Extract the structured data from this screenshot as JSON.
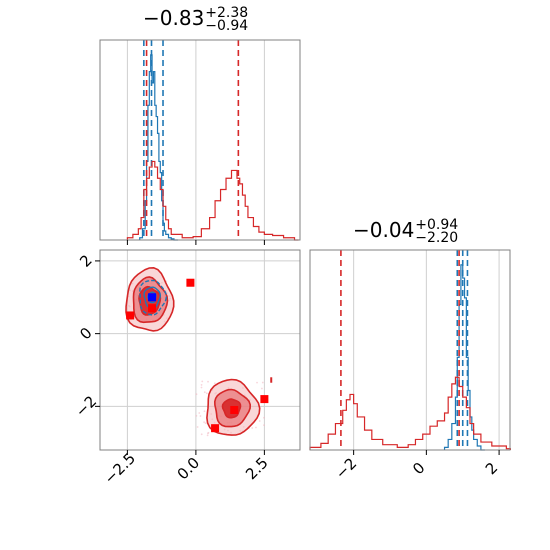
{
  "chart_data": [
    {
      "panel": "marginal_param1",
      "type": "histogram",
      "title": {
        "median": "−0.83",
        "plus": "+2.38",
        "minus": "−0.94"
      },
      "xlim": [
        -3.5,
        3.8
      ],
      "xticks": [
        -2.5,
        0.0,
        2.5
      ],
      "xtick_labels": [],
      "grid": true,
      "series": [
        {
          "name": "",
          "color": "#1f77b4",
          "x": [
            -2.05,
            -1.95,
            -1.85,
            -1.8,
            -1.75,
            -1.7,
            -1.65,
            -1.6,
            -1.55,
            -1.5,
            -1.45,
            -1.4,
            -1.35,
            -1.3,
            -1.25,
            -1.2,
            -1.15,
            -1.1,
            -1.0,
            -0.9,
            -0.8
          ],
          "y": [
            2,
            10,
            35,
            70,
            120,
            150,
            165,
            140,
            150,
            120,
            110,
            95,
            70,
            60,
            35,
            15,
            8,
            5,
            2,
            1,
            0
          ],
          "quantile_lines": [
            -1.9,
            -1.62,
            -1.2
          ]
        },
        {
          "name": "",
          "color": "#d62728",
          "x": [
            -2.5,
            -2.3,
            -2.1,
            -2.0,
            -1.9,
            -1.8,
            -1.7,
            -1.6,
            -1.5,
            -1.4,
            -1.3,
            -1.2,
            -1.1,
            -1.0,
            -0.9,
            -0.5,
            -0.1,
            0.2,
            0.5,
            0.7,
            0.9,
            1.1,
            1.3,
            1.5,
            1.6,
            1.7,
            1.8,
            1.9,
            2.1,
            2.3,
            2.5,
            2.8,
            3.2,
            3.6
          ],
          "y": [
            2,
            5,
            10,
            20,
            45,
            55,
            65,
            70,
            65,
            55,
            45,
            30,
            18,
            10,
            5,
            2,
            3,
            10,
            20,
            35,
            45,
            55,
            62,
            55,
            50,
            40,
            30,
            20,
            12,
            7,
            5,
            4,
            2,
            0
          ],
          "quantile_lines": [
            -1.8,
            1.55
          ]
        }
      ]
    },
    {
      "panel": "joint",
      "type": "scatter",
      "xlim": [
        -3.5,
        3.8
      ],
      "ylim": [
        -3.2,
        2.3
      ],
      "xticks": [
        -2.5,
        0.0,
        2.5
      ],
      "xtick_labels": [
        "−2.5",
        "0.0",
        "2.5"
      ],
      "yticks": [
        -2,
        0,
        2
      ],
      "ytick_labels": [
        "−2",
        "0",
        "2"
      ],
      "grid": true,
      "contours": [
        {
          "color": "#d62728",
          "center": [
            -1.7,
            0.9
          ],
          "levels": [
            0.9,
            0.65,
            0.4
          ]
        },
        {
          "color": "#d62728",
          "center": [
            1.3,
            -2.05
          ],
          "levels": [
            0.9,
            0.6,
            0.3
          ]
        },
        {
          "color": "#1f77b4",
          "center": [
            -1.6,
            1.0
          ],
          "levels": [
            0.5,
            0.3,
            0.15
          ]
        }
      ],
      "red_markers": [
        [
          -0.2,
          1.4
        ],
        [
          -2.4,
          0.5
        ],
        [
          -1.6,
          0.7
        ],
        [
          1.4,
          -2.1
        ],
        [
          0.7,
          -2.6
        ],
        [
          2.5,
          -1.8
        ]
      ],
      "blue_markers": [
        [
          -1.6,
          1.0
        ]
      ]
    },
    {
      "panel": "marginal_param2",
      "type": "histogram",
      "title": {
        "median": "−0.04",
        "plus": "+0.94",
        "minus": "−2.20"
      },
      "xlim": [
        -3.2,
        2.3
      ],
      "xticks": [
        -2,
        0,
        2
      ],
      "xtick_labels": [
        "−2",
        "0",
        "2"
      ],
      "grid": true,
      "series": [
        {
          "name": "",
          "color": "#1f77b4",
          "x": [
            0.5,
            0.6,
            0.7,
            0.8,
            0.85,
            0.9,
            0.95,
            1.0,
            1.05,
            1.1,
            1.15,
            1.2,
            1.25,
            1.3,
            1.4,
            1.5
          ],
          "y": [
            2,
            8,
            20,
            40,
            70,
            110,
            140,
            130,
            115,
            70,
            45,
            25,
            15,
            8,
            3,
            0
          ],
          "quantile_lines": [
            0.85,
            1.0,
            1.13
          ]
        },
        {
          "name": "",
          "color": "#d62728",
          "x": [
            -3.2,
            -2.9,
            -2.7,
            -2.5,
            -2.3,
            -2.2,
            -2.1,
            -2.0,
            -1.9,
            -1.7,
            -1.5,
            -1.2,
            -0.8,
            -0.5,
            -0.3,
            -0.1,
            0.1,
            0.3,
            0.5,
            0.6,
            0.7,
            0.8,
            0.9,
            1.0,
            1.1,
            1.2,
            1.3,
            1.5,
            1.8,
            2.2
          ],
          "y": [
            2,
            5,
            12,
            20,
            30,
            38,
            42,
            35,
            25,
            15,
            8,
            4,
            2,
            4,
            8,
            12,
            18,
            22,
            28,
            40,
            50,
            55,
            48,
            40,
            32,
            20,
            12,
            6,
            3,
            1
          ],
          "quantile_lines": [
            -2.35,
            0.9
          ]
        }
      ]
    }
  ]
}
